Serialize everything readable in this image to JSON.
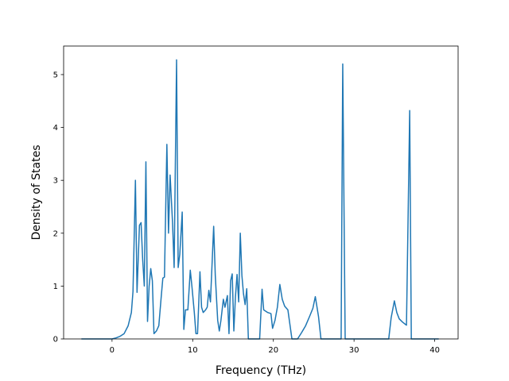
{
  "chart_data": {
    "type": "line",
    "xlabel": "Frequency (THz)",
    "ylabel": "Density of States",
    "color": "#1f77b4",
    "x": [
      -3.8,
      0,
      0.5,
      1,
      1.5,
      2,
      2.4,
      2.6,
      2.7,
      2.9,
      3.1,
      3.4,
      3.6,
      3.8,
      4.0,
      4.2,
      4.4,
      4.6,
      4.8,
      5.0,
      5.2,
      5.5,
      5.8,
      6.1,
      6.3,
      6.5,
      6.8,
      7.0,
      7.2,
      7.5,
      7.7,
      8.0,
      8.2,
      8.4,
      8.7,
      8.9,
      9.1,
      9.4,
      9.7,
      9.9,
      10.2,
      10.4,
      10.6,
      10.9,
      11.1,
      11.3,
      11.6,
      11.8,
      12.0,
      12.2,
      12.6,
      12.8,
      13.1,
      13.3,
      13.5,
      13.8,
      14.0,
      14.3,
      14.5,
      14.7,
      14.9,
      15.1,
      15.3,
      15.5,
      15.7,
      15.9,
      16.1,
      16.3,
      16.5,
      16.7,
      16.9,
      18.3,
      18.6,
      18.8,
      19.3,
      19.7,
      19.9,
      20.2,
      20.5,
      20.8,
      21.1,
      21.4,
      21.8,
      22.3,
      23.0,
      23.5,
      24.0,
      24.5,
      24.9,
      25.2,
      25.6,
      25.9,
      28.4,
      28.6,
      28.9,
      34.3,
      34.6,
      35.0,
      35.3,
      35.6,
      36.0,
      36.5,
      36.9,
      37.1,
      40.5
    ],
    "values": [
      0,
      0,
      0.02,
      0.05,
      0.1,
      0.25,
      0.5,
      0.9,
      1.6,
      3.0,
      0.88,
      2.15,
      2.2,
      1.5,
      1.0,
      3.35,
      0.33,
      1.0,
      1.33,
      1.1,
      0.1,
      0.15,
      0.25,
      0.8,
      1.15,
      1.17,
      3.68,
      2.0,
      3.1,
      2.2,
      1.35,
      5.28,
      1.35,
      1.6,
      2.4,
      0.18,
      0.55,
      0.55,
      1.3,
      1.0,
      0.5,
      0.1,
      0.1,
      1.27,
      0.6,
      0.5,
      0.55,
      0.6,
      0.92,
      0.7,
      2.13,
      1.2,
      0.35,
      0.15,
      0.35,
      0.75,
      0.6,
      0.82,
      0.1,
      1.1,
      1.23,
      0.15,
      0.8,
      1.22,
      0.7,
      2.0,
      1.2,
      0.85,
      0.65,
      0.95,
      0,
      0,
      0.94,
      0.55,
      0.5,
      0.48,
      0.2,
      0.35,
      0.6,
      1.03,
      0.75,
      0.62,
      0.55,
      0,
      0,
      0.12,
      0.25,
      0.43,
      0.58,
      0.8,
      0.42,
      0,
      0,
      5.2,
      0,
      0,
      0.4,
      0.72,
      0.5,
      0.38,
      0.32,
      0.26,
      4.32,
      0,
      0
    ],
    "xlim": [
      -6.0,
      42.9
    ],
    "ylim": [
      0,
      5.54
    ],
    "xticks": [
      0,
      10,
      20,
      30,
      40
    ],
    "yticks": [
      0,
      1,
      2,
      3,
      4,
      5
    ],
    "grid": false
  }
}
